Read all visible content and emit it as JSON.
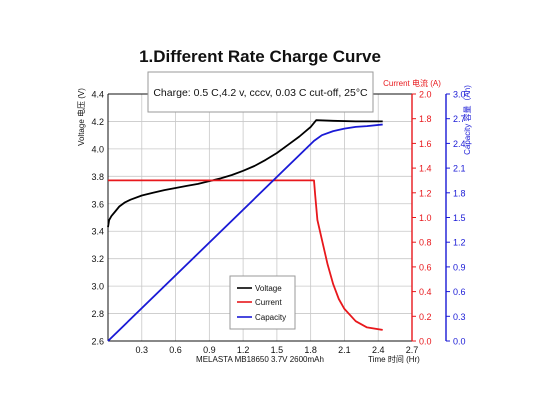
{
  "chart_data": {
    "type": "line",
    "title": "1.Different Rate Charge Curve",
    "annotation": "Charge: 0.5 C,4.2 v, cccv, 0.03 C cut-off, 25°C",
    "xlabel_left": "MELASTA MB18650 3.7V 2600mAh",
    "xlabel_right": "Time 时间 (Hr)",
    "ylabel_left": "Voltage 电压 (V)",
    "ylabel_right1": "Current 电流 (A)",
    "ylabel_right2": "Capacity 容量（Ah)",
    "xlim": [
      0,
      2.7
    ],
    "x_ticks": [
      "0.3",
      "0.6",
      "0.9",
      "1.2",
      "1.5",
      "1.8",
      "2.1",
      "2.4",
      "2.7"
    ],
    "y_left_lim": [
      2.6,
      4.4
    ],
    "y_left_ticks": [
      "2.6",
      "2.8",
      "3.0",
      "3.2",
      "3.4",
      "3.6",
      "3.8",
      "4.0",
      "4.2",
      "4.4"
    ],
    "y_current_lim": [
      0,
      2.0
    ],
    "y_current_ticks": [
      "0.0",
      "0.2",
      "0.4",
      "0.6",
      "0.8",
      "1.0",
      "1.2",
      "1.4",
      "1.6",
      "1.8",
      "2.0"
    ],
    "y_capacity_lim": [
      0,
      3.0
    ],
    "y_capacity_ticks": [
      "0.0",
      "0.3",
      "0.6",
      "0.9",
      "1.2",
      "1.5",
      "1.8",
      "2.1",
      "2.4",
      "2.7",
      "3.0"
    ],
    "grid": true,
    "legend_position": "bottom-center",
    "series": [
      {
        "name": "Voltage",
        "axis": "left",
        "color": "#000000",
        "x": [
          0.0,
          0.01,
          0.03,
          0.06,
          0.1,
          0.15,
          0.2,
          0.3,
          0.4,
          0.5,
          0.6,
          0.7,
          0.8,
          0.9,
          1.0,
          1.1,
          1.2,
          1.3,
          1.4,
          1.5,
          1.6,
          1.7,
          1.8,
          1.85,
          2.0,
          2.2,
          2.44
        ],
        "y": [
          3.43,
          3.48,
          3.51,
          3.54,
          3.58,
          3.61,
          3.63,
          3.66,
          3.68,
          3.7,
          3.715,
          3.73,
          3.745,
          3.765,
          3.785,
          3.81,
          3.84,
          3.875,
          3.92,
          3.97,
          4.03,
          4.09,
          4.16,
          4.21,
          4.205,
          4.2,
          4.2
        ]
      },
      {
        "name": "Current",
        "axis": "current",
        "color": "#e8181c",
        "x": [
          0.0,
          1.83,
          1.84,
          1.86,
          1.9,
          1.95,
          2.0,
          2.05,
          2.1,
          2.2,
          2.3,
          2.44
        ],
        "y": [
          1.3,
          1.3,
          1.18,
          0.98,
          0.82,
          0.62,
          0.46,
          0.34,
          0.26,
          0.16,
          0.11,
          0.09
        ]
      },
      {
        "name": "Capacity",
        "axis": "capacity",
        "color": "#1a1ad6",
        "x": [
          0.0,
          1.83,
          1.9,
          2.0,
          2.1,
          2.2,
          2.3,
          2.44
        ],
        "y": [
          0.0,
          2.43,
          2.5,
          2.55,
          2.58,
          2.6,
          2.61,
          2.63
        ]
      }
    ]
  },
  "legend": {
    "voltage": "Voltage",
    "current": "Current",
    "capacity": "Capacity"
  },
  "colors": {
    "voltage": "#000000",
    "current": "#e8181c",
    "capacity": "#1a1ad6",
    "grid": "#c8c8c8"
  }
}
